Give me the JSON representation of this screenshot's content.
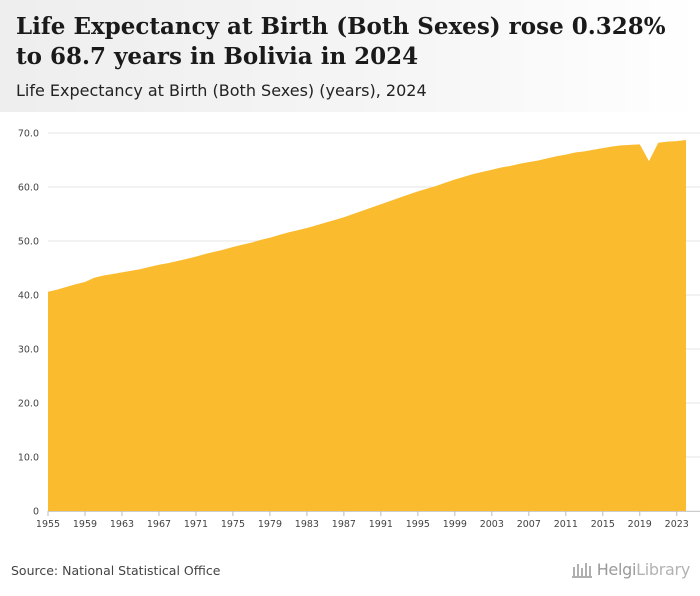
{
  "header": {
    "title": "Life Expectancy at Birth (Both Sexes) rose 0.328% to 68.7 years in Bolivia in 2024",
    "subtitle": "Life Expectancy at Birth (Both Sexes) (years), 2024"
  },
  "footer": {
    "source": "Source: National Statistical Office",
    "brand_bold": "Helgi",
    "brand_light": "Library"
  },
  "colors": {
    "area": "#fbbb2f",
    "grid": "#e6e6e6"
  },
  "chart_data": {
    "type": "area",
    "title": "Life Expectancy at Birth (Both Sexes) (years), 2024",
    "xlabel": "",
    "ylabel": "",
    "xlim": [
      1955,
      2024
    ],
    "ylim": [
      0,
      70
    ],
    "yticks": [
      0,
      10,
      20,
      30,
      40,
      50,
      60,
      70
    ],
    "ytick_labels": [
      "0",
      "10.0",
      "20.0",
      "30.0",
      "40.0",
      "50.0",
      "60.0",
      "70.0"
    ],
    "xticks": [
      1955,
      1959,
      1963,
      1967,
      1971,
      1975,
      1979,
      1983,
      1987,
      1991,
      1995,
      1999,
      2003,
      2007,
      2011,
      2015,
      2019,
      2023
    ],
    "grid": true,
    "legend": "none",
    "x": [
      1955,
      1956,
      1957,
      1958,
      1959,
      1960,
      1961,
      1962,
      1963,
      1964,
      1965,
      1966,
      1967,
      1968,
      1969,
      1970,
      1971,
      1972,
      1973,
      1974,
      1975,
      1976,
      1977,
      1978,
      1979,
      1980,
      1981,
      1982,
      1983,
      1984,
      1985,
      1986,
      1987,
      1988,
      1989,
      1990,
      1991,
      1992,
      1993,
      1994,
      1995,
      1996,
      1997,
      1998,
      1999,
      2000,
      2001,
      2002,
      2003,
      2004,
      2005,
      2006,
      2007,
      2008,
      2009,
      2010,
      2011,
      2012,
      2013,
      2014,
      2015,
      2016,
      2017,
      2018,
      2019,
      2020,
      2021,
      2022,
      2023,
      2024
    ],
    "values": [
      40.6,
      41.0,
      41.5,
      42.0,
      42.4,
      43.2,
      43.6,
      43.9,
      44.2,
      44.5,
      44.8,
      45.2,
      45.6,
      45.9,
      46.3,
      46.7,
      47.1,
      47.6,
      48.0,
      48.4,
      48.9,
      49.3,
      49.7,
      50.2,
      50.6,
      51.1,
      51.6,
      52.0,
      52.4,
      52.9,
      53.4,
      53.9,
      54.4,
      55.0,
      55.6,
      56.2,
      56.8,
      57.4,
      58.0,
      58.6,
      59.2,
      59.7,
      60.2,
      60.8,
      61.4,
      61.9,
      62.4,
      62.8,
      63.2,
      63.6,
      63.9,
      64.3,
      64.6,
      64.9,
      65.3,
      65.7,
      66.0,
      66.4,
      66.6,
      66.9,
      67.2,
      67.5,
      67.7,
      67.8,
      67.9,
      64.8,
      68.2,
      68.4,
      68.5,
      68.7
    ]
  }
}
